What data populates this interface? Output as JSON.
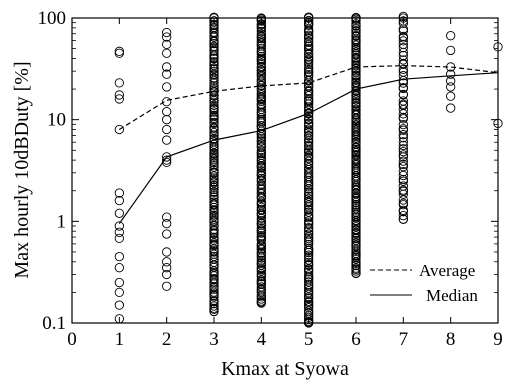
{
  "chart_data": {
    "type": "scatter",
    "title": "",
    "xlabel": "Kmax at Syowa",
    "ylabel": "Max hourly 10dBDuty [%]",
    "xlim": [
      0,
      9
    ],
    "ylim": [
      0.1,
      100
    ],
    "yscale": "log",
    "grid": false,
    "x_ticks": [
      "0",
      "1",
      "2",
      "3",
      "4",
      "5",
      "6",
      "7",
      "8",
      "9"
    ],
    "y_ticks": [
      "0.1",
      "1",
      "10",
      "100"
    ],
    "legend": {
      "position": "bottom-right",
      "entries": [
        {
          "label": "Average",
          "style": "dashed"
        },
        {
          "label": "Median",
          "style": "solid"
        }
      ]
    },
    "series": [
      {
        "name": "Average",
        "style": "dashed",
        "x": [
          1,
          2,
          3,
          4,
          5,
          6,
          7,
          8,
          9
        ],
        "y": [
          8,
          15.5,
          19,
          21.5,
          23,
          33,
          34,
          33,
          29
        ]
      },
      {
        "name": "Median",
        "style": "solid",
        "x": [
          1,
          2,
          3,
          4,
          5,
          6,
          7,
          8,
          9
        ],
        "y": [
          0.95,
          4.3,
          6.3,
          7.8,
          11.5,
          20,
          25,
          27,
          29
        ]
      }
    ],
    "scatter_summary": [
      {
        "x": 1,
        "y_min": 0.11,
        "y_max": 47
      },
      {
        "x": 2,
        "y_min": 0.23,
        "y_max": 72
      },
      {
        "x": 3,
        "y_min": 0.13,
        "y_max": 100
      },
      {
        "x": 4,
        "y_min": 0.16,
        "y_max": 100
      },
      {
        "x": 5,
        "y_min": 0.1,
        "y_max": 100
      },
      {
        "x": 6,
        "y_min": 0.31,
        "y_max": 100
      },
      {
        "x": 7,
        "y_min": 1.05,
        "y_max": 100
      },
      {
        "x": 8,
        "y_min": 13,
        "y_max": 67
      },
      {
        "x": 9,
        "y_min": 9,
        "y_max": 52
      }
    ],
    "scatter_points": {
      "1": [
        47,
        45,
        23,
        17.5,
        16,
        8,
        1.9,
        1.6,
        1.2,
        0.9,
        0.78,
        0.68,
        0.45,
        0.35,
        0.25,
        0.2,
        0.15,
        0.11
      ],
      "2": [
        72,
        65,
        55,
        45,
        33,
        28,
        21,
        15,
        12,
        10,
        8,
        6.3,
        4.3,
        4,
        3.8,
        1.1,
        0.95,
        0.75,
        0.5,
        0.4,
        0.35,
        0.3,
        0.23
      ],
      "8": [
        67,
        48,
        33,
        28,
        24,
        21,
        17,
        13
      ],
      "9": [
        52,
        9.2
      ]
    }
  }
}
